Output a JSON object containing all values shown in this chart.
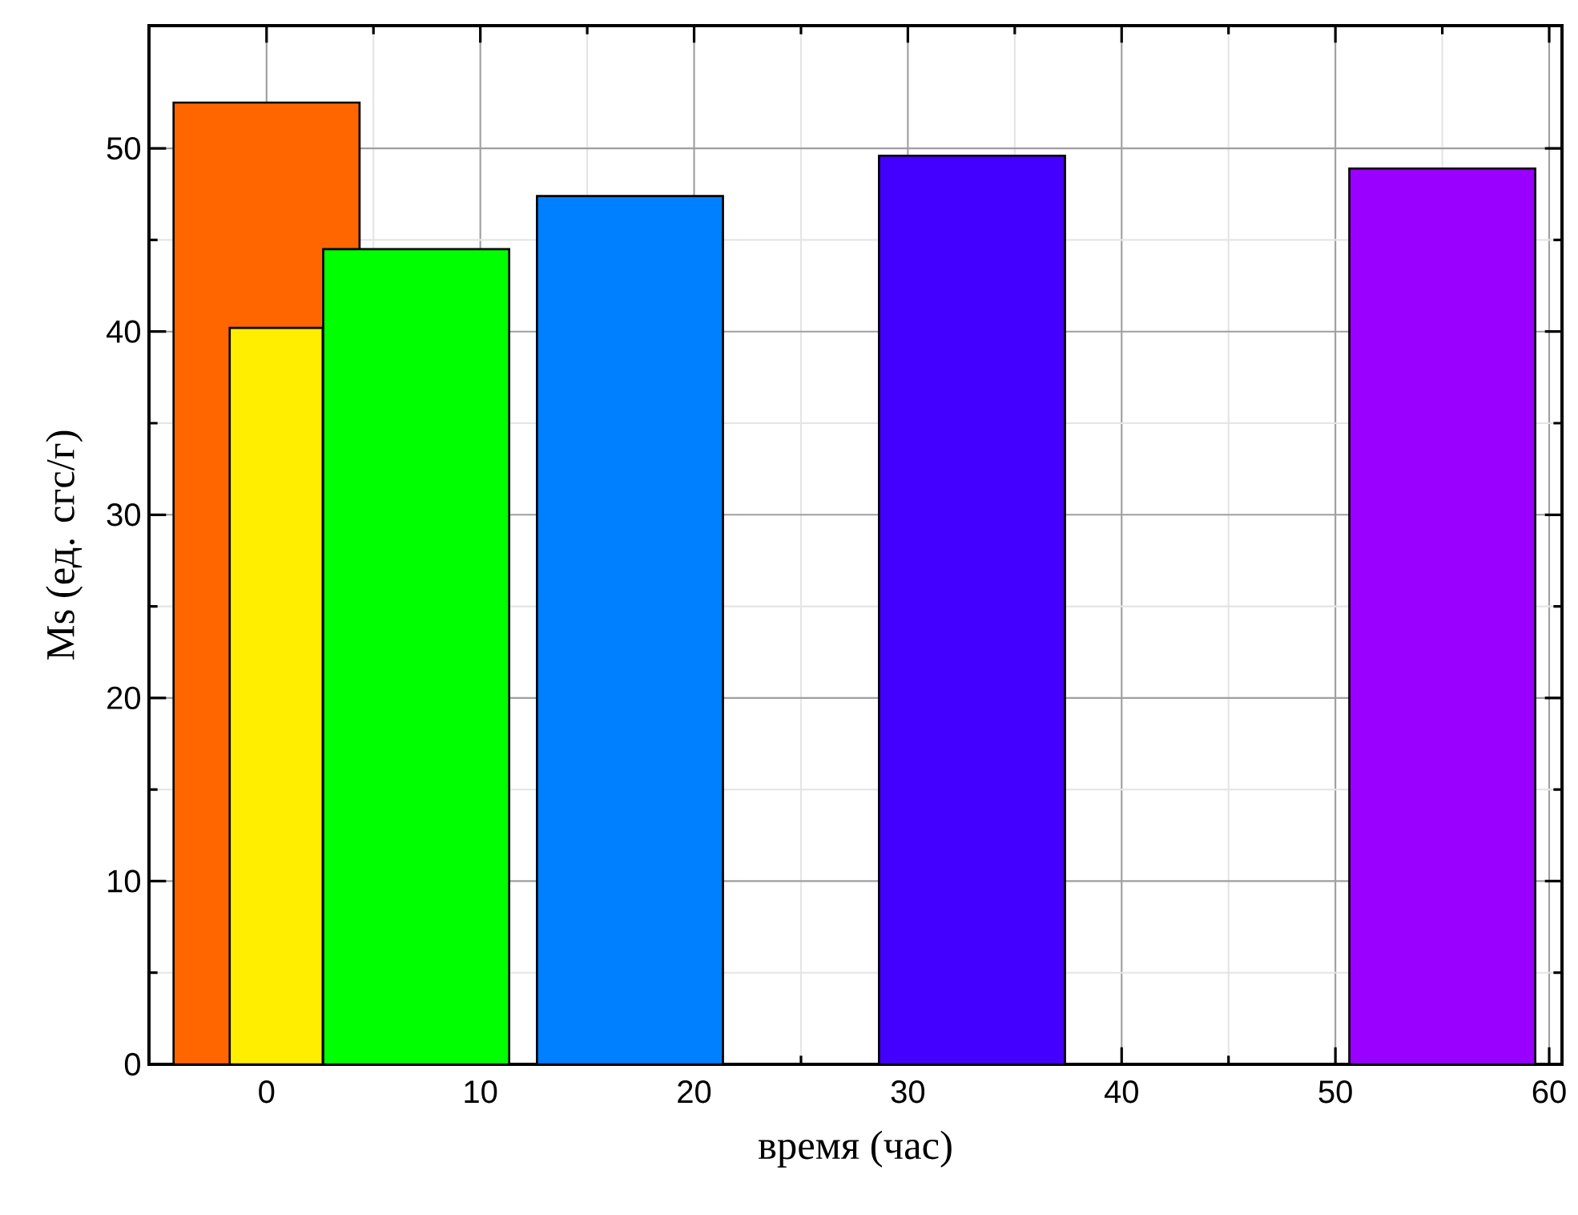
{
  "chart_data": {
    "type": "bar",
    "xlabel": "время (час)",
    "ylabel": "Ms (ед. cгс/г)",
    "series": [
      {
        "x": [
          0,
          7,
          17,
          33,
          55
        ],
        "values": [
          52.5,
          44.5,
          47.4,
          49.6,
          48.9
        ],
        "colors": [
          "#ff6600",
          "#00ff00",
          "#007fff",
          "#4400ff",
          "#9900ff"
        ]
      },
      {
        "x": [
          0.45
        ],
        "values": [
          40.2
        ],
        "colors": [
          "#ffee00"
        ]
      }
    ],
    "xlim": [
      -5.5,
      60.6
    ],
    "ylim": [
      0,
      56.7
    ],
    "xticks": [
      0,
      10,
      20,
      30,
      40,
      50,
      60
    ],
    "yticks": [
      0,
      10,
      20,
      30,
      40,
      50
    ],
    "grid": true
  }
}
